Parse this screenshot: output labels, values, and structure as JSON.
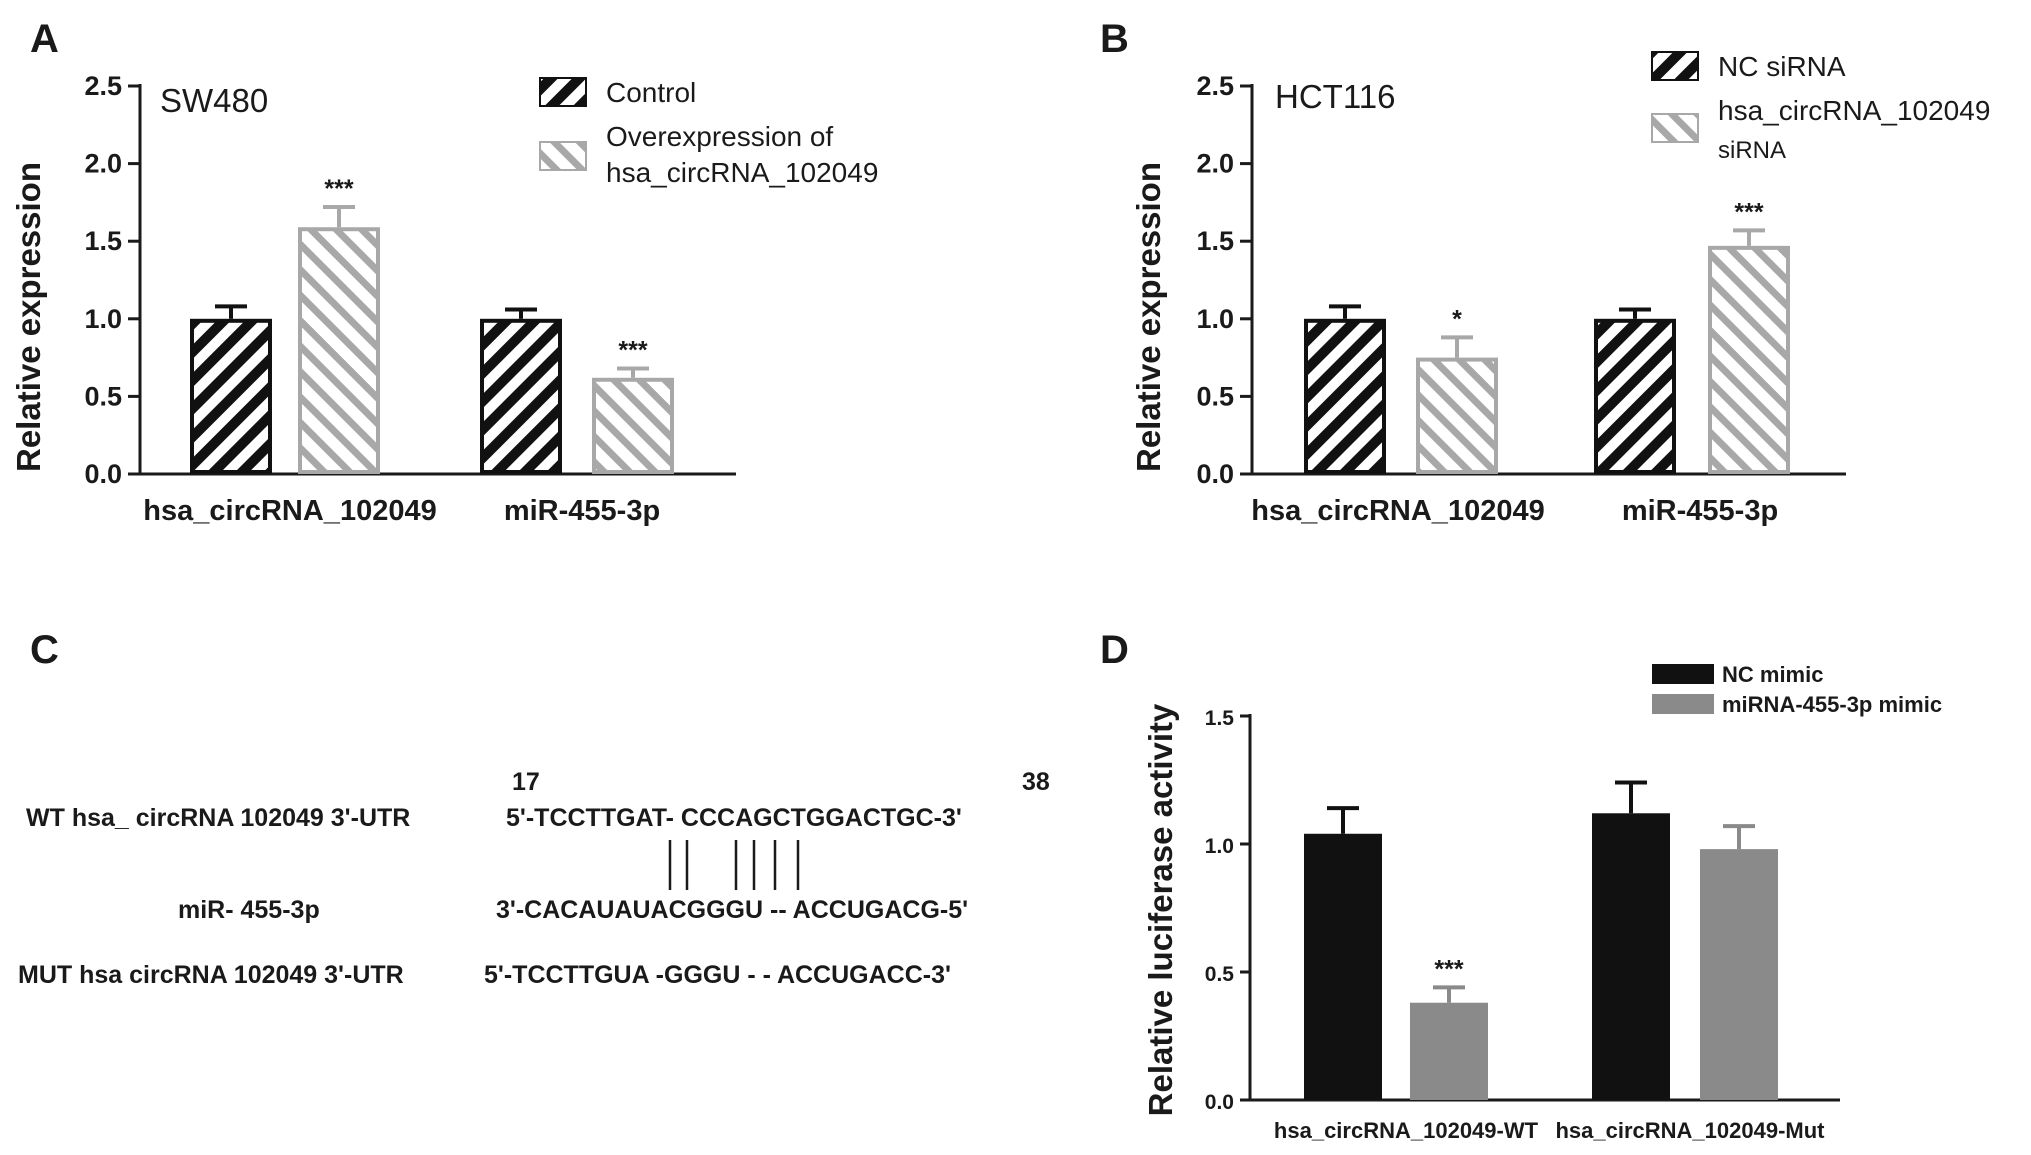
{
  "panels": [
    {
      "letter": "A",
      "cell_line": "SW480",
      "ylabel": "Relative expression",
      "legend": [
        "Control",
        "Overexpression of",
        "hsa_circRNA_102049"
      ]
    },
    {
      "letter": "B",
      "cell_line": "HCT116",
      "ylabel": "Relative expression",
      "legend": [
        "NC siRNA",
        "hsa_circRNA_102049",
        "siRNA"
      ]
    },
    {
      "letter": "C"
    },
    {
      "letter": "D",
      "ylabel": "Relative luciferase activity",
      "legend": [
        "NC mimic",
        "miRNA-455-3p mimic"
      ]
    }
  ],
  "sequence": {
    "pos_start": "17",
    "pos_end": "38",
    "wt_label": "WT hsa_ circRNA 102049 3'-UTR",
    "wt_seq": "5'-TCCTTGAT- CCCAGCTGGACTGC-3'",
    "mir_label": "miR- 455-3p",
    "mir_seq": "3'-CACAUAUACGGGU -- ACCUGACG-5'",
    "mut_label": "MUT hsa circRNA 102049 3'-UTR",
    "mut_seq": "5'-TCCTTGUA -GGGU - - ACCUGACC-3'"
  },
  "colors": {
    "black_bar": "#111111",
    "gray_bar": "#8a8a8a",
    "hatch_gray": "#a8a8a8",
    "axis": "#1a1a1a"
  },
  "chart_data": [
    {
      "type": "bar",
      "title": "SW480",
      "xlabel": "",
      "ylabel": "Relative expression",
      "ylim": [
        0,
        2.5
      ],
      "yticks": [
        "0.0",
        "0.5",
        "1.0",
        "1.5",
        "2.0",
        "2.5"
      ],
      "categories": [
        "hsa_circRNA_102049",
        "miR-455-3p"
      ],
      "series": [
        {
          "name": "Control",
          "values": [
            1.0,
            1.0
          ],
          "errors": [
            0.08,
            0.06
          ],
          "annotations": [
            "",
            ""
          ]
        },
        {
          "name": "Overexpression of hsa_circRNA_102049",
          "values": [
            1.59,
            0.62
          ],
          "errors": [
            0.13,
            0.06
          ],
          "annotations": [
            "***",
            "***"
          ]
        }
      ],
      "legend_position": "top-right",
      "grid": false
    },
    {
      "type": "bar",
      "title": "HCT116",
      "xlabel": "",
      "ylabel": "Relative expression",
      "ylim": [
        0,
        2.5
      ],
      "yticks": [
        "0.0",
        "0.5",
        "1.0",
        "1.5",
        "2.0",
        "2.5"
      ],
      "categories": [
        "hsa_circRNA_102049",
        "miR-455-3p"
      ],
      "series": [
        {
          "name": "NC siRNA",
          "values": [
            1.0,
            1.0
          ],
          "errors": [
            0.08,
            0.06
          ],
          "annotations": [
            "",
            ""
          ]
        },
        {
          "name": "hsa_circRNA_102049 siRNA",
          "values": [
            0.75,
            1.47
          ],
          "errors": [
            0.13,
            0.1
          ],
          "annotations": [
            "*",
            "***"
          ]
        }
      ],
      "legend_position": "top-right",
      "grid": false
    },
    {
      "type": "bar",
      "title": "",
      "xlabel": "",
      "ylabel": "Relative luciferase activity",
      "ylim": [
        0,
        1.5
      ],
      "yticks": [
        "0.0",
        "0.5",
        "1.0",
        "1.5"
      ],
      "categories": [
        "hsa_circRNA_102049-WT",
        "hsa_circRNA_102049-Mut"
      ],
      "series": [
        {
          "name": "NC mimic",
          "values": [
            1.04,
            1.12
          ],
          "errors": [
            0.1,
            0.12
          ],
          "annotations": [
            "",
            ""
          ]
        },
        {
          "name": "miRNA-455-3p mimic",
          "values": [
            0.38,
            0.98
          ],
          "errors": [
            0.06,
            0.09
          ],
          "annotations": [
            "***",
            ""
          ]
        }
      ],
      "legend_position": "top-right",
      "grid": false
    }
  ]
}
